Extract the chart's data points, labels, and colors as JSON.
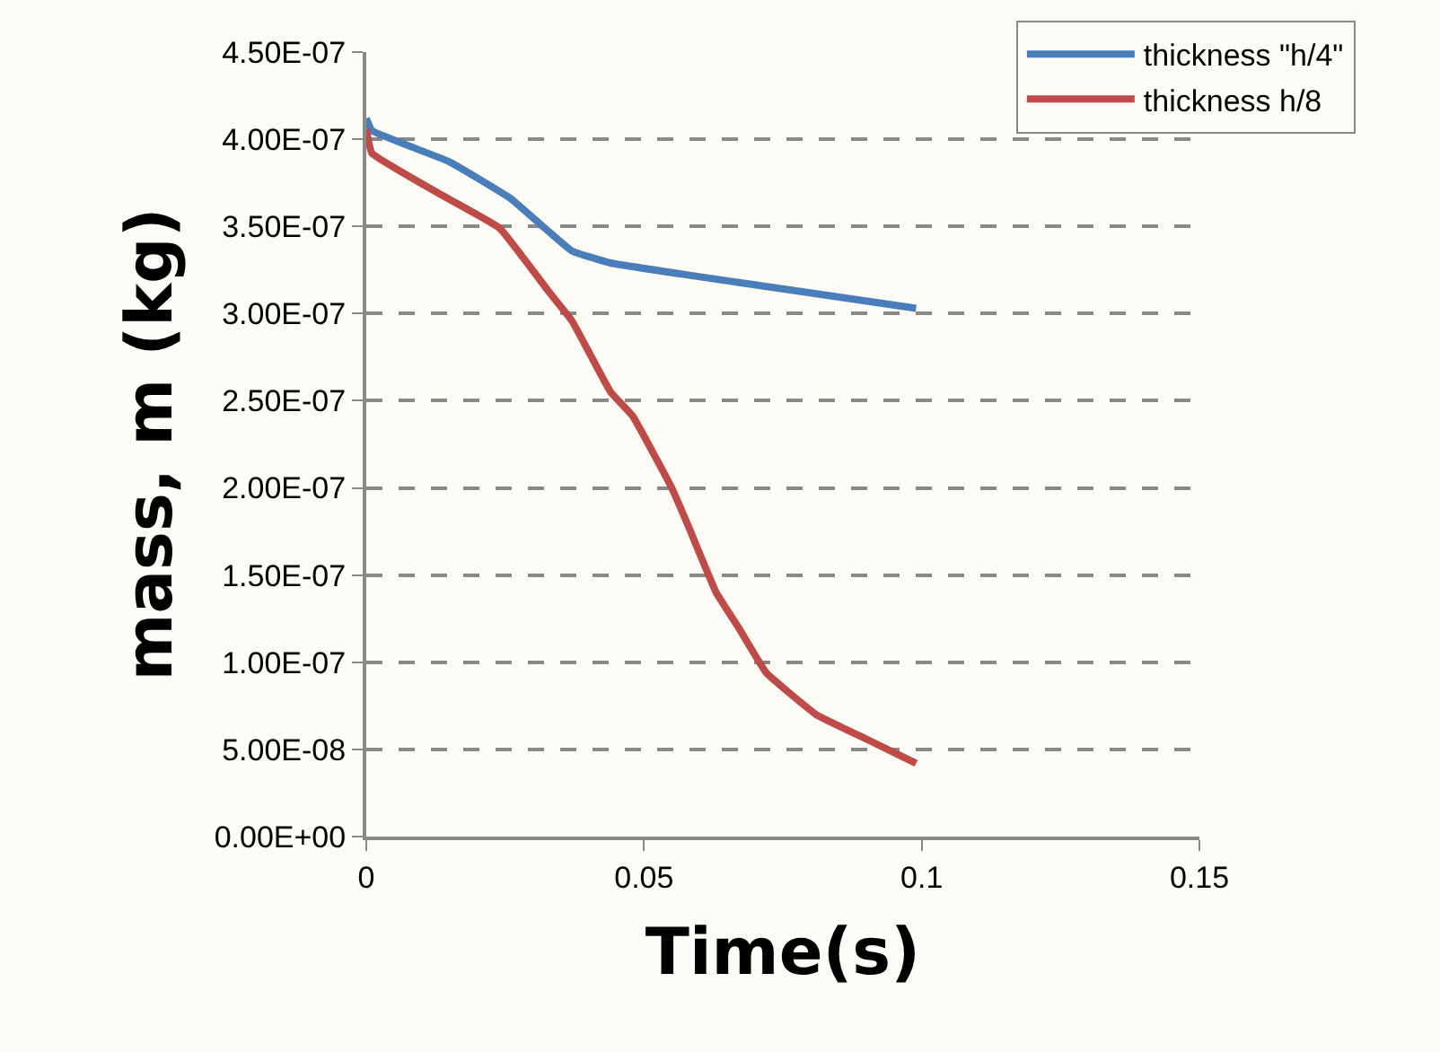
{
  "chart_data": {
    "type": "line",
    "xlabel": "Time(s)",
    "ylabel": "mass, m (kg)",
    "xlim": [
      0,
      0.15
    ],
    "xticks": [
      0,
      0.05,
      0.1,
      0.15
    ],
    "ylim": [
      0,
      4.5e-07
    ],
    "yticks": [
      {
        "value": 0,
        "label": "0.00E+00"
      },
      {
        "value": 5e-08,
        "label": "5.00E-08"
      },
      {
        "value": 1e-07,
        "label": "1.00E-07"
      },
      {
        "value": 1.5e-07,
        "label": "1.50E-07"
      },
      {
        "value": 2e-07,
        "label": "2.00E-07"
      },
      {
        "value": 2.5e-07,
        "label": "2.50E-07"
      },
      {
        "value": 3e-07,
        "label": "3.00E-07"
      },
      {
        "value": 3.5e-07,
        "label": "3.50E-07"
      },
      {
        "value": 4e-07,
        "label": "4.00E-07"
      },
      {
        "value": 4.5e-07,
        "label": "4.50E-07"
      }
    ],
    "grid": "y",
    "legend": "top right",
    "line_style": "solid",
    "marker": "none",
    "series": [
      {
        "name": "thickness \"h/4\"",
        "color": "#4a7ebb",
        "x": [
          0,
          0.001,
          0.015,
          0.026,
          0.037,
          0.044,
          0.071,
          0.099
        ],
        "values": [
          4.12e-07,
          4.05e-07,
          3.87e-07,
          3.66e-07,
          3.36e-07,
          3.29e-07,
          3.16e-07,
          3.03e-07
        ]
      },
      {
        "name": "thickness h/8",
        "color": "#be4b48",
        "x": [
          0,
          0.001,
          0.013,
          0.024,
          0.033,
          0.037,
          0.044,
          0.048,
          0.055,
          0.058,
          0.063,
          0.067,
          0.072,
          0.081,
          0.09,
          0.099
        ],
        "values": [
          4.06e-07,
          3.92e-07,
          3.69e-07,
          3.49e-07,
          3.12e-07,
          2.96e-07,
          2.55e-07,
          2.41e-07,
          2e-07,
          1.78e-07,
          1.4e-07,
          1.2e-07,
          9.4e-08,
          7e-08,
          5.6e-08,
          4.2e-08
        ]
      }
    ]
  }
}
